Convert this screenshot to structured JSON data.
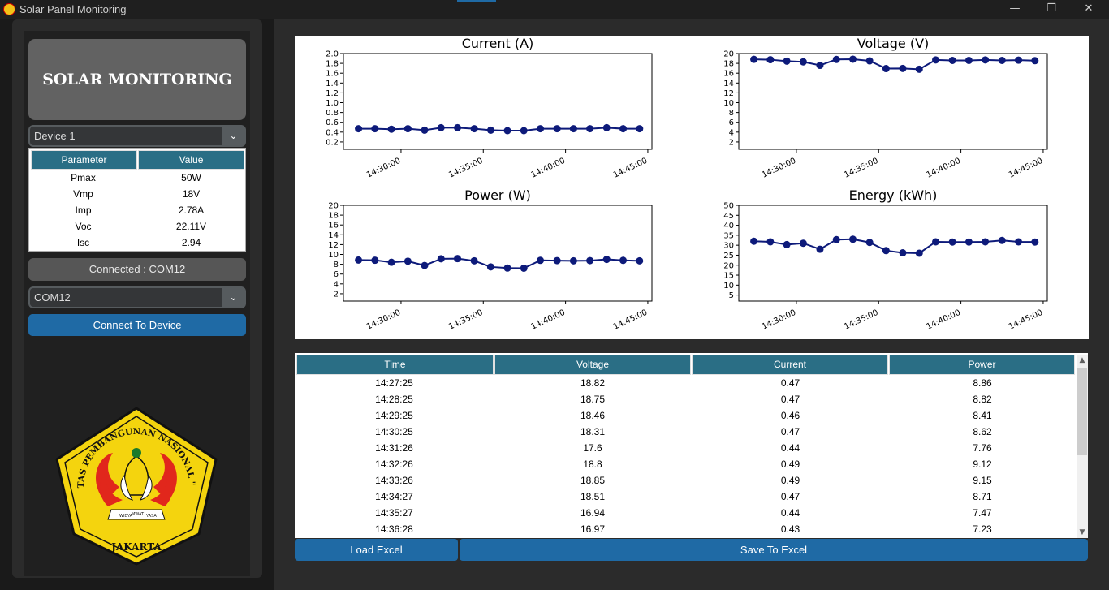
{
  "window": {
    "title": "Solar Panel Monitoring",
    "minimize": "—",
    "restore": "❐",
    "close": "✕"
  },
  "sidebar": {
    "brand_title": "SOLAR MONITORING",
    "device_select": "Device 1",
    "param_table": {
      "headers": [
        "Parameter",
        "Value"
      ],
      "rows": [
        [
          "Pmax",
          "50W"
        ],
        [
          "Vmp",
          "18V"
        ],
        [
          "Imp",
          "2.78A"
        ],
        [
          "Voc",
          "22.11V"
        ],
        [
          "Isc",
          "2.94"
        ]
      ]
    },
    "status": "Connected : COM12",
    "port_select": "COM12",
    "connect_label": "Connect To Device",
    "emblem": {
      "ring_text": "UNIVERSITAS PEMBANGUNAN NASIONAL \"VETERAN\"",
      "bottom_text": "JAKARTA",
      "ribbon": [
        "WIDYA",
        "MWAT",
        "YASA"
      ]
    }
  },
  "chart_data": [
    {
      "type": "line",
      "title": "Current (A)",
      "x": [
        "14:27:25",
        "14:28:25",
        "14:29:25",
        "14:30:25",
        "14:31:26",
        "14:32:26",
        "14:33:26",
        "14:34:27",
        "14:35:27",
        "14:36:28",
        "14:37:28",
        "14:38:28",
        "14:39:29",
        "14:40:29",
        "14:41:29",
        "14:42:30",
        "14:43:30",
        "14:44:30"
      ],
      "values": [
        0.47,
        0.47,
        0.46,
        0.47,
        0.44,
        0.49,
        0.49,
        0.47,
        0.44,
        0.43,
        0.43,
        0.47,
        0.47,
        0.47,
        0.47,
        0.49,
        0.47,
        0.47
      ],
      "xticks": [
        "14:30:00",
        "14:35:00",
        "14:40:00",
        "14:45:00"
      ],
      "yticks": [
        "0.2",
        "0.4",
        "0.6",
        "0.8",
        "1.0",
        "1.2",
        "1.4",
        "1.6",
        "1.8",
        "2.0"
      ],
      "ylim": [
        0.05,
        2.0
      ],
      "xlabel": "",
      "ylabel": ""
    },
    {
      "type": "line",
      "title": "Voltage (V)",
      "x": [
        "14:27:25",
        "14:28:25",
        "14:29:25",
        "14:30:25",
        "14:31:26",
        "14:32:26",
        "14:33:26",
        "14:34:27",
        "14:35:27",
        "14:36:28",
        "14:37:28",
        "14:38:28",
        "14:39:29",
        "14:40:29",
        "14:41:29",
        "14:42:30",
        "14:43:30",
        "14:44:30"
      ],
      "values": [
        18.82,
        18.75,
        18.46,
        18.31,
        17.6,
        18.8,
        18.85,
        18.51,
        16.94,
        16.97,
        16.8,
        18.7,
        18.6,
        18.6,
        18.7,
        18.6,
        18.65,
        18.55
      ],
      "xticks": [
        "14:30:00",
        "14:35:00",
        "14:40:00",
        "14:45:00"
      ],
      "yticks": [
        "2",
        "4",
        "6",
        "8",
        "10",
        "12",
        "14",
        "16",
        "18",
        "20"
      ],
      "ylim": [
        0.5,
        20
      ],
      "xlabel": "",
      "ylabel": ""
    },
    {
      "type": "line",
      "title": "Power (W)",
      "x": [
        "14:27:25",
        "14:28:25",
        "14:29:25",
        "14:30:25",
        "14:31:26",
        "14:32:26",
        "14:33:26",
        "14:34:27",
        "14:35:27",
        "14:36:28",
        "14:37:28",
        "14:38:28",
        "14:39:29",
        "14:40:29",
        "14:41:29",
        "14:42:30",
        "14:43:30",
        "14:44:30"
      ],
      "values": [
        8.86,
        8.82,
        8.41,
        8.62,
        7.76,
        9.12,
        9.15,
        8.71,
        7.47,
        7.23,
        7.2,
        8.8,
        8.75,
        8.7,
        8.75,
        9.0,
        8.8,
        8.7
      ],
      "xticks": [
        "14:30:00",
        "14:35:00",
        "14:40:00",
        "14:45:00"
      ],
      "yticks": [
        "2",
        "4",
        "6",
        "8",
        "10",
        "12",
        "14",
        "16",
        "18",
        "20"
      ],
      "ylim": [
        0.5,
        20
      ],
      "xlabel": "",
      "ylabel": ""
    },
    {
      "type": "line",
      "title": "Energy (kWh)",
      "x": [
        "14:27:25",
        "14:28:25",
        "14:29:25",
        "14:30:25",
        "14:31:26",
        "14:32:26",
        "14:33:26",
        "14:34:27",
        "14:35:27",
        "14:36:28",
        "14:37:28",
        "14:38:28",
        "14:39:29",
        "14:40:29",
        "14:41:29",
        "14:42:30",
        "14:43:30",
        "14:44:30"
      ],
      "values": [
        32,
        31.7,
        30.3,
        31,
        28,
        32.8,
        33,
        31.4,
        27.3,
        26.2,
        26,
        31.7,
        31.6,
        31.6,
        31.7,
        32.4,
        31.7,
        31.6
      ],
      "xticks": [
        "14:30:00",
        "14:35:00",
        "14:40:00",
        "14:45:00"
      ],
      "yticks": [
        "5",
        "10",
        "15",
        "20",
        "25",
        "30",
        "35",
        "40",
        "45",
        "50"
      ],
      "ylim": [
        2,
        50
      ],
      "xlabel": "",
      "ylabel": ""
    }
  ],
  "data_table": {
    "headers": [
      "Time",
      "Voltage",
      "Current",
      "Power"
    ],
    "rows": [
      [
        "14:27:25",
        "18.82",
        "0.47",
        "8.86"
      ],
      [
        "14:28:25",
        "18.75",
        "0.47",
        "8.82"
      ],
      [
        "14:29:25",
        "18.46",
        "0.46",
        "8.41"
      ],
      [
        "14:30:25",
        "18.31",
        "0.47",
        "8.62"
      ],
      [
        "14:31:26",
        "17.6",
        "0.44",
        "7.76"
      ],
      [
        "14:32:26",
        "18.8",
        "0.49",
        "9.12"
      ],
      [
        "14:33:26",
        "18.85",
        "0.49",
        "9.15"
      ],
      [
        "14:34:27",
        "18.51",
        "0.47",
        "8.71"
      ],
      [
        "14:35:27",
        "16.94",
        "0.44",
        "7.47"
      ],
      [
        "14:36:28",
        "16.97",
        "0.43",
        "7.23"
      ]
    ]
  },
  "actions": {
    "load_label": "Load Excel",
    "save_label": "Save To Excel"
  },
  "colors": {
    "accent": "#1f6aa5",
    "table_header": "#2a6e85",
    "series": "#0d1a7a"
  }
}
